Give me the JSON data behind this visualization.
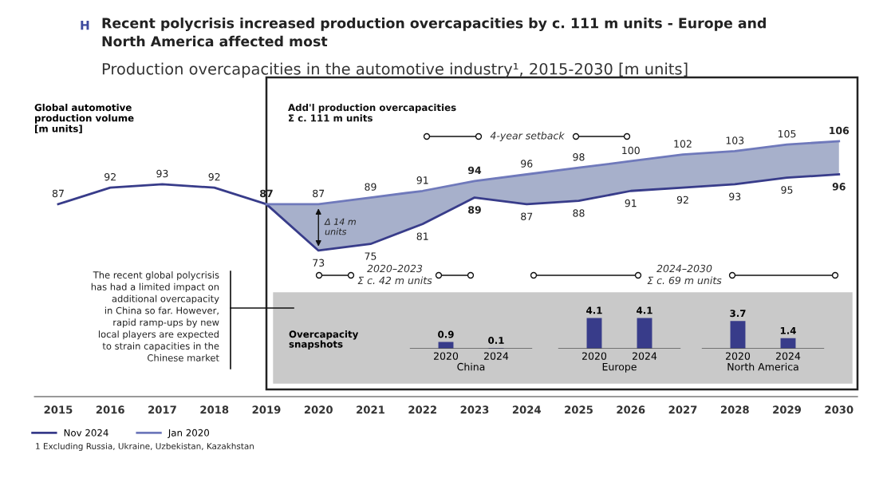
{
  "chart_data": [
    {
      "type": "line",
      "title": "Recent polycrisis increased production overcapacities by c. 111 m units - Europe and\nNorth America affected most",
      "subtitle": "Production overcapacities in the automotive industry¹, 2015-2030 [m units]",
      "ylabel": "Global automotive\nproduction volume\n[m units]",
      "categories": [
        "2015",
        "2016",
        "2017",
        "2018",
        "2019",
        "2020",
        "2021",
        "2022",
        "2023",
        "2024",
        "2025",
        "2026",
        "2027",
        "2028",
        "2029",
        "2030"
      ],
      "series": [
        {
          "name": "Nov 2024",
          "color": "#383c8a",
          "values": [
            87,
            92,
            93,
            92,
            87,
            73,
            75,
            81,
            89,
            87,
            88,
            91,
            92,
            93,
            95,
            96
          ],
          "value_labels": [
            "87",
            "92",
            "93",
            "92",
            "87",
            "73",
            "75",
            "81",
            "89",
            "87",
            "88",
            "91",
            "92",
            "93",
            "95",
            "96"
          ]
        },
        {
          "name": "Jan 2020",
          "color": "#6f79bb",
          "values": [
            null,
            null,
            null,
            null,
            87,
            87,
            89,
            91,
            94,
            96,
            98,
            100,
            102,
            103,
            105,
            106
          ],
          "value_labels": [
            null,
            null,
            null,
            null,
            null,
            "87",
            "89",
            "91",
            "94",
            "96",
            "98",
            "100",
            "102",
            "103",
            "105",
            "106"
          ],
          "lower": [
            null,
            null,
            null,
            null,
            87,
            73,
            75,
            81,
            89,
            87,
            88,
            91,
            92,
            93,
            95,
            96
          ],
          "upper": [
            null,
            null,
            null,
            null,
            87,
            87,
            89,
            91,
            94,
            96,
            98,
            100,
            102,
            103,
            105,
            106
          ]
        }
      ],
      "legend": "bottom left",
      "grid": false,
      "marker": "none",
      "line_style": "solid",
      "annotations": [
        "H",
        "Add'l production overcapacities\nΣ c. 111 m units",
        "4-year setback",
        "Δ 14 m\nunits",
        "2020–2023\nΣ c. 42 m units",
        "2024–2030\nΣ c. 69 m units",
        "The recent global polycrisis\nhas had a limited impact on\nadditional overcapacity\nin China so far. However,\nrapid ramp-ups by new\nlocal players are expected\nto strain capacities in the\nChinese market",
        "1 Excluding Russia, Ukraine, Uzbekistan, Kazakhstan"
      ]
    },
    {
      "type": "bar",
      "xlabel": "China",
      "categories": [
        "2020",
        "2024"
      ],
      "values": [
        0.9,
        0.1
      ],
      "color": "#383c8a",
      "data_labels": true,
      "annotations": [
        "Overcapacity\nsnapshots"
      ]
    },
    {
      "type": "bar",
      "xlabel": "Europe",
      "categories": [
        "2020",
        "2024"
      ],
      "values": [
        4.1,
        4.1
      ],
      "color": "#383c8a",
      "data_labels": true
    },
    {
      "type": "bar",
      "xlabel": "North America",
      "categories": [
        "2020",
        "2024"
      ],
      "values": [
        3.7,
        1.4
      ],
      "color": "#383c8a",
      "data_labels": true
    }
  ]
}
